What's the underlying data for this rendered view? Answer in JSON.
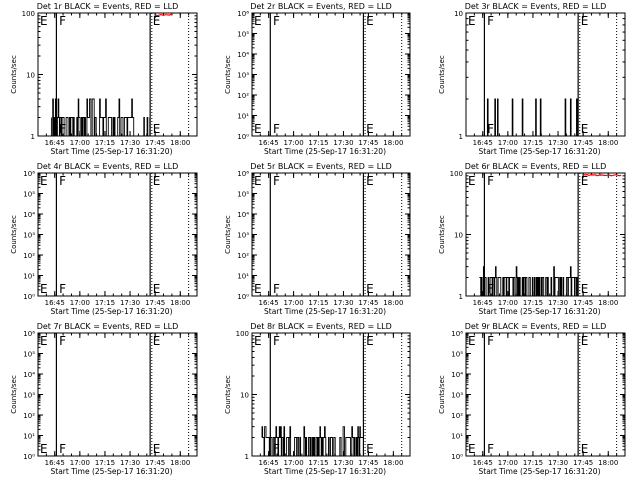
{
  "x_tick_labels": [
    "16:45",
    "17:00",
    "17:15",
    "17:30",
    "17:45",
    "18:00"
  ],
  "x_axis_label": "Start Time (25-Sep-17 16:31:20)",
  "y_axis_label": "Counts/sec",
  "marker_letters": {
    "flag_f": "F",
    "flag_e": "E"
  },
  "colors": {
    "events": "#000000",
    "lld": "#ff0000"
  },
  "chart_data": [
    {
      "type": "line",
      "title": "Det 1r BLACK = Events, RED = LLD",
      "xlabel": "Start Time (25-Sep-17 16:31:20)",
      "ylabel": "Counts/sec",
      "y_scale": "log",
      "ylim": [
        1,
        100
      ],
      "y_ticks": [
        "1",
        "10",
        "100"
      ],
      "xlim": [
        "16:35",
        "18:10"
      ],
      "x_ticks": [
        "16:45",
        "17:00",
        "17:15",
        "17:30",
        "17:45",
        "18:00"
      ],
      "vertical_markers": {
        "solid": [
          "16:46",
          "17:42"
        ],
        "dotted": [
          "17:43",
          "18:05"
        ]
      },
      "flags": [
        {
          "letter": "F",
          "x": "16:47"
        },
        {
          "letter": "E",
          "x": "17:43"
        }
      ],
      "series": [
        {
          "name": "Events",
          "color": "#000000",
          "x_range": [
            "16:43",
            "17:42"
          ],
          "values_range": [
            1,
            4
          ],
          "typical": 2
        },
        {
          "name": "LLD",
          "color": "#ff0000",
          "x_range": [
            "17:45",
            "17:55"
          ],
          "values_range": [
            90,
            95
          ],
          "typical": 92
        }
      ]
    },
    {
      "type": "line",
      "title": "Det 2r BLACK = Events, RED = LLD",
      "xlabel": "Start Time (25-Sep-17 16:31:20)",
      "ylabel": "Counts/sec",
      "y_scale": "log",
      "ylim": [
        1,
        1000000
      ],
      "y_ticks": [
        "10⁰",
        "10¹",
        "10²",
        "10³",
        "10⁴",
        "10⁵",
        "10⁶"
      ],
      "xlim": [
        "16:35",
        "18:10"
      ],
      "x_ticks": [
        "16:45",
        "17:00",
        "17:15",
        "17:30",
        "17:45",
        "18:00"
      ],
      "vertical_markers": {
        "solid": [
          "16:46",
          "17:42"
        ],
        "dotted": [
          "17:43",
          "18:05"
        ]
      },
      "flags": [
        {
          "letter": "F",
          "x": "16:47"
        },
        {
          "letter": "E",
          "x": "17:43"
        }
      ],
      "series": []
    },
    {
      "type": "line",
      "title": "Det 3r BLACK = Events, RED = LLD",
      "xlabel": "Start Time (25-Sep-17 16:31:20)",
      "ylabel": "Counts/sec",
      "y_scale": "log",
      "ylim": [
        1,
        10
      ],
      "y_ticks": [
        "1",
        "10"
      ],
      "xlim": [
        "16:35",
        "18:10"
      ],
      "x_ticks": [
        "16:45",
        "17:00",
        "17:15",
        "17:30",
        "17:45",
        "18:00"
      ],
      "vertical_markers": {
        "solid": [
          "16:46",
          "17:42"
        ],
        "dotted": [
          "17:43",
          "18:05"
        ]
      },
      "flags": [
        {
          "letter": "F",
          "x": "16:47"
        },
        {
          "letter": "E",
          "x": "17:43"
        }
      ],
      "series": [
        {
          "name": "Events",
          "color": "#000000",
          "x_range": [
            "16:43",
            "17:42"
          ],
          "values_range": [
            1,
            2
          ],
          "typical": 1
        }
      ]
    },
    {
      "type": "line",
      "title": "Det 4r BLACK = Events, RED = LLD",
      "xlabel": "Start Time (25-Sep-17 16:31:20)",
      "ylabel": "Counts/sec",
      "y_scale": "log",
      "ylim": [
        1,
        1000000
      ],
      "y_ticks": [
        "10⁰",
        "10¹",
        "10²",
        "10³",
        "10⁴",
        "10⁵",
        "10⁶"
      ],
      "xlim": [
        "16:35",
        "18:10"
      ],
      "x_ticks": [
        "16:45",
        "17:00",
        "17:15",
        "17:30",
        "17:45",
        "18:00"
      ],
      "vertical_markers": {
        "solid": [
          "16:46",
          "17:42"
        ],
        "dotted": [
          "17:43",
          "18:05"
        ]
      },
      "flags": [
        {
          "letter": "F",
          "x": "16:47"
        },
        {
          "letter": "E",
          "x": "17:43"
        }
      ],
      "series": []
    },
    {
      "type": "line",
      "title": "Det 5r BLACK = Events, RED = LLD",
      "xlabel": "Start Time (25-Sep-17 16:31:20)",
      "ylabel": "Counts/sec",
      "y_scale": "log",
      "ylim": [
        1,
        1000000
      ],
      "y_ticks": [
        "10⁰",
        "10¹",
        "10²",
        "10³",
        "10⁴",
        "10⁵",
        "10⁶"
      ],
      "xlim": [
        "16:35",
        "18:10"
      ],
      "x_ticks": [
        "16:45",
        "17:00",
        "17:15",
        "17:30",
        "17:45",
        "18:00"
      ],
      "vertical_markers": {
        "solid": [
          "16:46",
          "17:42"
        ],
        "dotted": [
          "17:43",
          "18:05"
        ]
      },
      "flags": [
        {
          "letter": "F",
          "x": "16:47"
        },
        {
          "letter": "E",
          "x": "17:43"
        }
      ],
      "series": []
    },
    {
      "type": "line",
      "title": "Det 6r BLACK = Events, RED = LLD",
      "xlabel": "Start Time (25-Sep-17 16:31:20)",
      "ylabel": "Counts/sec",
      "y_scale": "log",
      "ylim": [
        1,
        100
      ],
      "y_ticks": [
        "1",
        "10",
        "100"
      ],
      "xlim": [
        "16:35",
        "18:10"
      ],
      "x_ticks": [
        "16:45",
        "17:00",
        "17:15",
        "17:30",
        "17:45",
        "18:00"
      ],
      "vertical_markers": {
        "solid": [
          "16:46",
          "17:42"
        ],
        "dotted": [
          "17:43",
          "18:05"
        ]
      },
      "flags": [
        {
          "letter": "F",
          "x": "16:47"
        },
        {
          "letter": "E",
          "x": "17:43"
        }
      ],
      "series": [
        {
          "name": "Events",
          "color": "#000000",
          "x_range": [
            "16:43",
            "17:42"
          ],
          "values_range": [
            1,
            3
          ],
          "typical": 2
        },
        {
          "name": "LLD",
          "color": "#ff0000",
          "x_range": [
            "17:45",
            "18:08"
          ],
          "values_range": [
            90,
            95
          ],
          "typical": 92
        }
      ]
    },
    {
      "type": "line",
      "title": "Det 7r BLACK = Events, RED = LLD",
      "xlabel": "Start Time (25-Sep-17 16:31:20)",
      "ylabel": "Counts/sec",
      "y_scale": "log",
      "ylim": [
        1,
        1000000
      ],
      "y_ticks": [
        "10⁰",
        "10¹",
        "10²",
        "10³",
        "10⁴",
        "10⁵",
        "10⁶"
      ],
      "xlim": [
        "16:35",
        "18:10"
      ],
      "x_ticks": [
        "16:45",
        "17:00",
        "17:15",
        "17:30",
        "17:45",
        "18:00"
      ],
      "vertical_markers": {
        "solid": [
          "16:46",
          "17:42"
        ],
        "dotted": [
          "17:43",
          "18:05"
        ]
      },
      "flags": [
        {
          "letter": "F",
          "x": "16:47"
        },
        {
          "letter": "E",
          "x": "17:43"
        }
      ],
      "series": []
    },
    {
      "type": "line",
      "title": "Det 8r BLACK = Events, RED = LLD",
      "xlabel": "Start Time (25-Sep-17 16:31:20)",
      "ylabel": "Counts/sec",
      "y_scale": "log",
      "ylim": [
        1,
        100
      ],
      "y_ticks": [
        "1",
        "10",
        "100"
      ],
      "xlim": [
        "16:35",
        "18:10"
      ],
      "x_ticks": [
        "16:45",
        "17:00",
        "17:15",
        "17:30",
        "17:45",
        "18:00"
      ],
      "vertical_markers": {
        "solid": [
          "16:46",
          "17:42"
        ],
        "dotted": [
          "17:43",
          "18:05"
        ]
      },
      "flags": [
        {
          "letter": "F",
          "x": "16:47"
        },
        {
          "letter": "E",
          "x": "17:43"
        }
      ],
      "series": [
        {
          "name": "Events",
          "color": "#000000",
          "x_range": [
            "16:41",
            "17:42"
          ],
          "values_range": [
            1,
            3
          ],
          "typical": 2
        }
      ]
    },
    {
      "type": "line",
      "title": "Det 9r BLACK = Events, RED = LLD",
      "xlabel": "Start Time (25-Sep-17 16:31:20)",
      "ylabel": "Counts/sec",
      "y_scale": "log",
      "ylim": [
        1,
        1000000
      ],
      "y_ticks": [
        "10⁰",
        "10¹",
        "10²",
        "10³",
        "10⁴",
        "10⁵",
        "10⁶"
      ],
      "xlim": [
        "16:35",
        "18:10"
      ],
      "x_ticks": [
        "16:45",
        "17:00",
        "17:15",
        "17:30",
        "17:45",
        "18:00"
      ],
      "vertical_markers": {
        "solid": [
          "16:46",
          "17:42"
        ],
        "dotted": [
          "17:43",
          "18:05"
        ]
      },
      "flags": [
        {
          "letter": "F",
          "x": "16:47"
        },
        {
          "letter": "E",
          "x": "17:43"
        }
      ],
      "series": []
    }
  ]
}
